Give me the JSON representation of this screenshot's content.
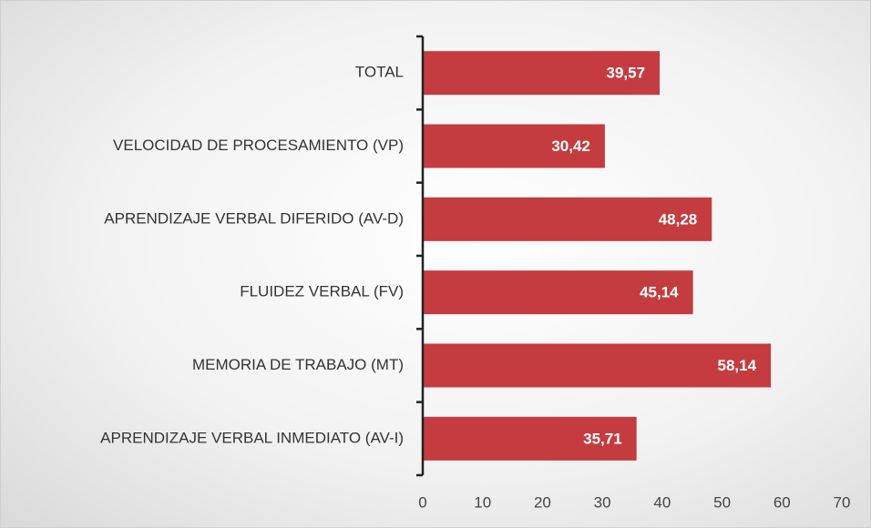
{
  "chart_data": {
    "type": "barh",
    "categories": [
      "TOTAL",
      "VELOCIDAD DE PROCESAMIENTO (VP)",
      "APRENDIZAJE VERBAL DIFERIDO (AV-D)",
      "FLUIDEZ VERBAL (FV)",
      "MEMORIA DE TRABAJO (MT)",
      "APRENDIZAJE VERBAL INMEDIATO (AV-I)"
    ],
    "values": [
      39.57,
      30.42,
      48.28,
      45.14,
      58.14,
      35.71
    ],
    "value_labels": [
      "39,57",
      "30,42",
      "48,28",
      "45,14",
      "58,14",
      "35,71"
    ],
    "color": "#c43c3f",
    "xlim": [
      0,
      70
    ],
    "xticks": [
      0,
      10,
      20,
      30,
      40,
      50,
      60,
      70
    ],
    "grid": false
  }
}
